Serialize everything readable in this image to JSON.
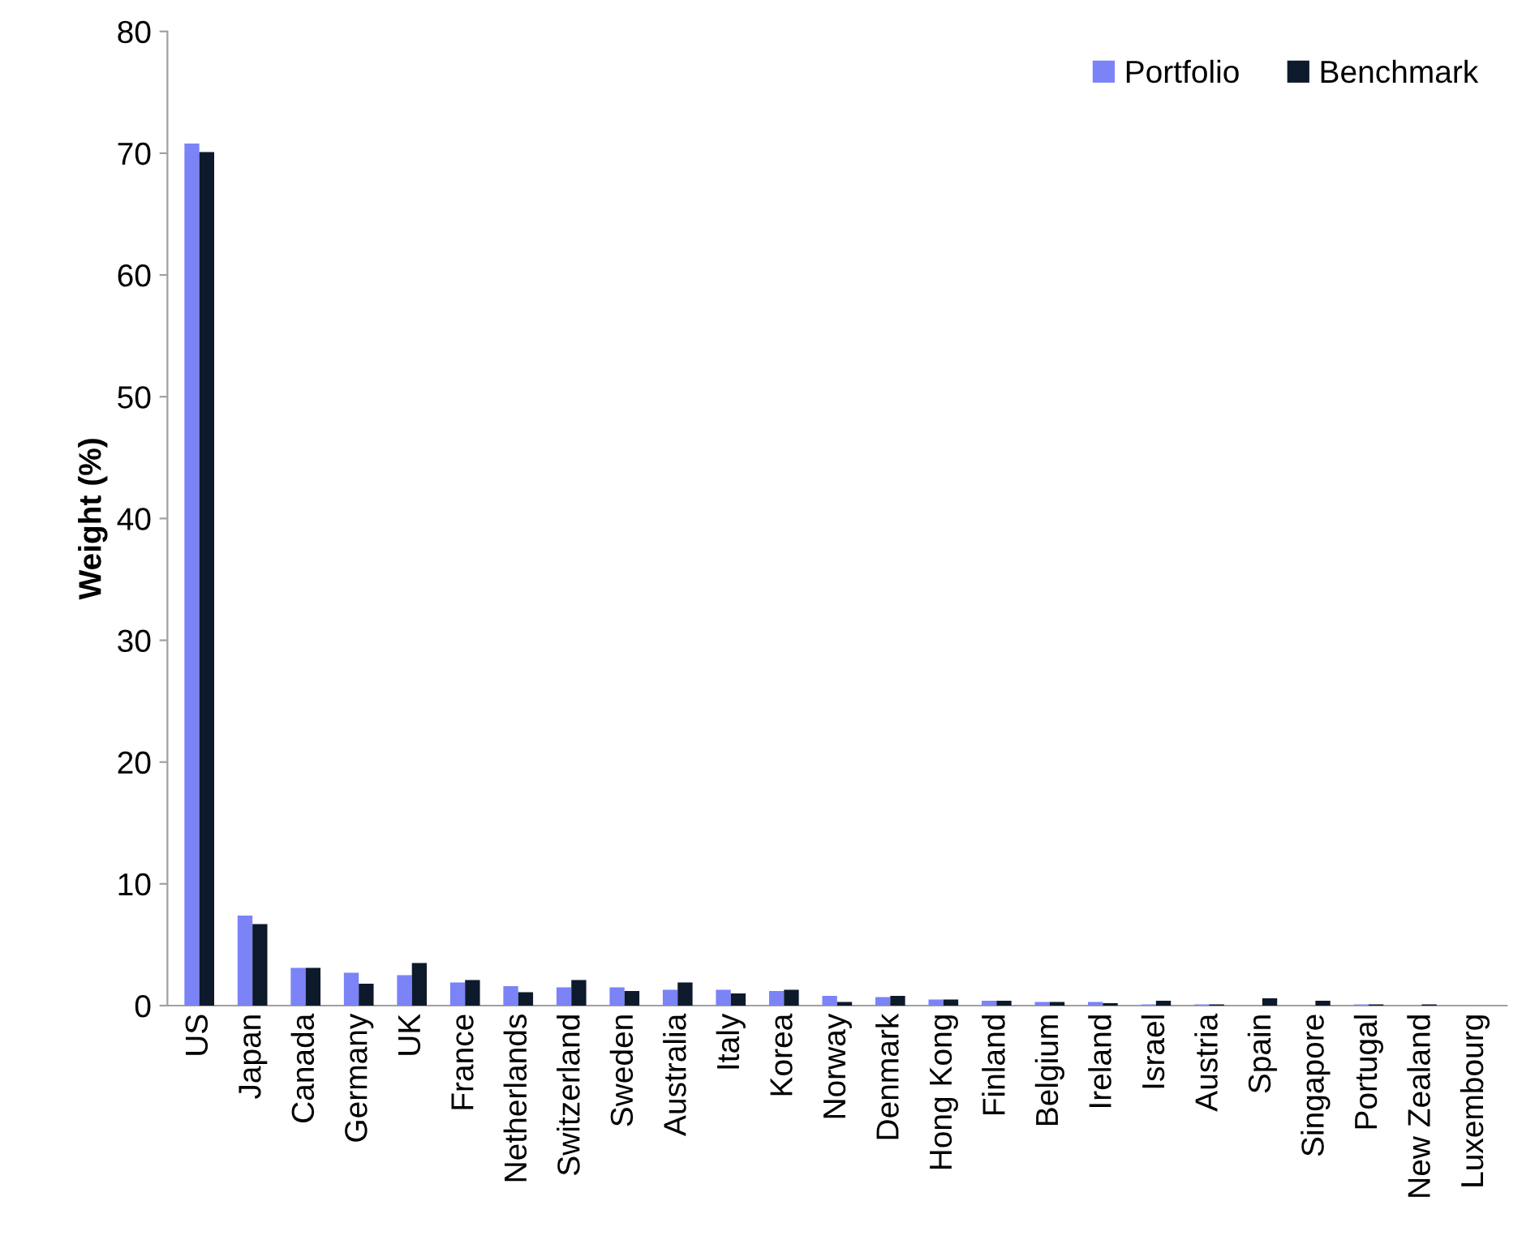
{
  "chart_data": {
    "type": "bar",
    "ylabel": "Weight (%)",
    "categories": [
      "US",
      "Japan",
      "Canada",
      "Germany",
      "UK",
      "France",
      "Netherlands",
      "Switzerland",
      "Sweden",
      "Australia",
      "Italy",
      "Korea",
      "Norway",
      "Denmark",
      "Hong Kong",
      "Finland",
      "Belgium",
      "Ireland",
      "Israel",
      "Austria",
      "Spain",
      "Singapore",
      "Portugal",
      "New Zealand",
      "Luxembourg"
    ],
    "series": [
      {
        "name": "Portfolio",
        "color": "#7b83f7",
        "values": [
          70.8,
          7.4,
          3.1,
          2.7,
          2.5,
          1.9,
          1.6,
          1.5,
          1.5,
          1.3,
          1.3,
          1.2,
          0.8,
          0.7,
          0.5,
          0.4,
          0.3,
          0.3,
          0.1,
          0.1,
          0,
          0,
          0.1,
          0,
          0
        ]
      },
      {
        "name": "Benchmark",
        "color": "#0d1a2b",
        "values": [
          70.1,
          6.7,
          3.1,
          1.8,
          3.5,
          2.1,
          1.1,
          2.1,
          1.2,
          1.9,
          1.0,
          1.3,
          0.3,
          0.8,
          0.5,
          0.4,
          0.3,
          0.2,
          0.4,
          0.1,
          0.6,
          0.4,
          0.1,
          0.1,
          0
        ]
      }
    ],
    "ylim": [
      0,
      80
    ],
    "yticks": [
      0,
      10,
      20,
      30,
      40,
      50,
      60,
      70,
      80
    ],
    "grid": false,
    "legend": "top right"
  }
}
